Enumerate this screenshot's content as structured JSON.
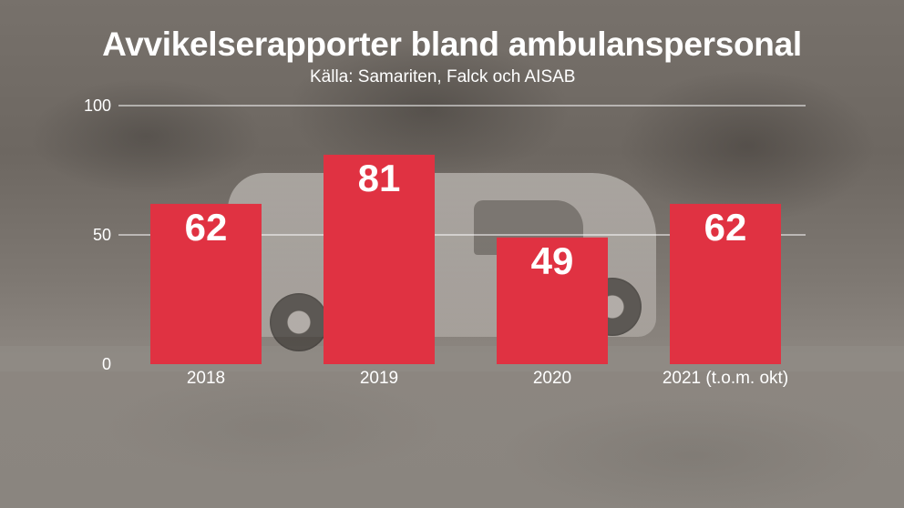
{
  "chart_data": {
    "type": "bar",
    "title": "Avvikelserapporter bland ambulanspersonal",
    "subtitle": "Källa: Samariten, Falck och AISAB",
    "categories": [
      "2018",
      "2019",
      "2020",
      "2021 (t.o.m. okt)"
    ],
    "values": [
      62,
      81,
      49,
      62
    ],
    "data_labels": [
      "62",
      "81",
      "49",
      "62"
    ],
    "yticks": [
      0,
      50,
      100
    ],
    "ytick_labels": [
      "0",
      "50",
      "100"
    ],
    "ylim": [
      0,
      100
    ],
    "grid": true,
    "bar_color": "#e03242",
    "text_color": "#ffffff"
  }
}
